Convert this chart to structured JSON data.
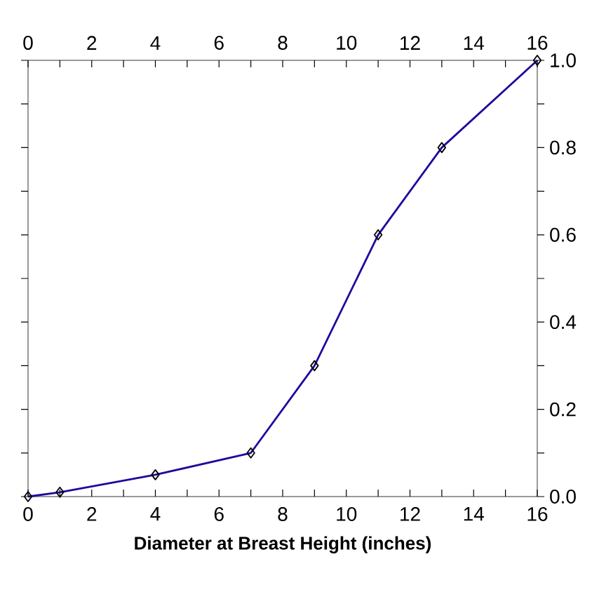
{
  "chart_data": {
    "type": "line",
    "xlabel": "Diameter at Breast Height (inches)",
    "series": [
      {
        "axis": "y2",
        "color": "#1e0a9c",
        "x": [
          0,
          1,
          4,
          7,
          9,
          11,
          13,
          16
        ],
        "values": [
          0,
          0.01,
          0.05,
          0.1,
          0.3,
          0.6,
          0.8,
          1.0
        ]
      }
    ],
    "marker": "diamond",
    "line_style": "solid",
    "grid": false,
    "xlim": [
      0,
      16
    ],
    "xticks": [
      0,
      {
        "value": 1,
        "label": null
      },
      2,
      {
        "value": 3,
        "label": null
      },
      4,
      {
        "value": 5,
        "label": null
      },
      6,
      {
        "value": 7,
        "label": null
      },
      8,
      {
        "value": 9,
        "label": null
      },
      10,
      {
        "value": 11,
        "label": null
      },
      12,
      {
        "value": 13,
        "label": null
      },
      14,
      {
        "value": 15,
        "label": null
      },
      16
    ],
    "x2lim": [
      0,
      16
    ],
    "x2ticks": [
      0,
      {
        "value": 1,
        "label": null
      },
      2,
      {
        "value": 3,
        "label": null
      },
      4,
      {
        "value": 5,
        "label": null
      },
      6,
      {
        "value": 7,
        "label": null
      },
      8,
      {
        "value": 9,
        "label": null
      },
      10,
      {
        "value": 11,
        "label": null
      },
      12,
      {
        "value": 13,
        "label": null
      },
      14,
      {
        "value": 15,
        "label": null
      },
      16
    ],
    "y2lim": [
      0,
      1
    ],
    "y2ticks": [
      {
        "value": 0,
        "label": "0.0"
      },
      {
        "value": 0.1,
        "label": null
      },
      {
        "value": 0.2,
        "label": "0.2"
      },
      {
        "value": 0.3,
        "label": null
      },
      {
        "value": 0.4,
        "label": "0.4"
      },
      {
        "value": 0.5,
        "label": null
      },
      {
        "value": 0.6,
        "label": "0.6"
      },
      {
        "value": 0.7,
        "label": null
      },
      {
        "value": 0.8,
        "label": "0.8"
      },
      {
        "value": 0.9,
        "label": null
      },
      {
        "value": 1,
        "label": "1.0"
      }
    ]
  }
}
